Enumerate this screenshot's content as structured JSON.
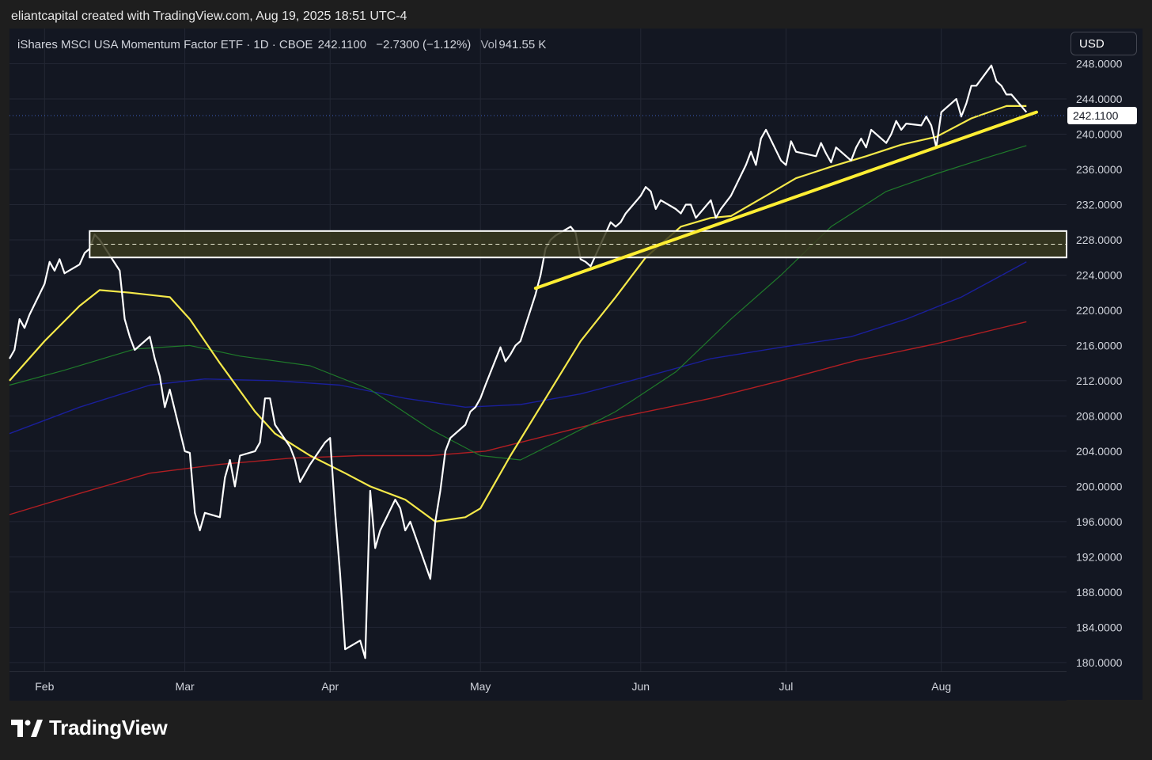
{
  "header": {
    "text": "eliantcapital created with TradingView.com, Aug 19, 2025 18:51 UTC-4"
  },
  "legend": {
    "symbol": "iShares MSCI USA Momentum Factor ETF · 1D · CBOE",
    "last": "242.1100",
    "change": "−2.7300 (−1.12%)",
    "vol_label": "Vol",
    "vol_value": "941.55 K"
  },
  "currency_button": "USD",
  "brand": {
    "name": "TradingView",
    "icon": "tradingview-logo-icon"
  },
  "colors": {
    "background": "#131722",
    "price": "#ffffff",
    "ma_short": "#f5e94a",
    "ma_mid": "#1f7a2a",
    "ma_long": "#1a1f9a",
    "ma_longest": "#b01e22",
    "trendline": "#ffee33",
    "zone_fill": "#3a3a1e"
  },
  "chart_data": {
    "type": "line",
    "symbol": "iShares MSCI USA Momentum Factor ETF",
    "interval": "1D",
    "exchange": "CBOE",
    "last_price": 242.11,
    "y_ticks": [
      "248.0000",
      "244.0000",
      "240.0000",
      "236.0000",
      "232.0000",
      "228.0000",
      "224.0000",
      "220.0000",
      "216.0000",
      "212.0000",
      "208.0000",
      "204.0000",
      "200.0000",
      "196.0000",
      "192.0000",
      "188.0000",
      "184.0000",
      "180.0000"
    ],
    "x_ticks": [
      {
        "label": "Feb",
        "date": "2025-02-03"
      },
      {
        "label": "Mar",
        "date": "2025-03-03"
      },
      {
        "label": "Apr",
        "date": "2025-04-01"
      },
      {
        "label": "May",
        "date": "2025-05-01"
      },
      {
        "label": "Jun",
        "date": "2025-06-02"
      },
      {
        "label": "Jul",
        "date": "2025-07-01"
      },
      {
        "label": "Aug",
        "date": "2025-08-01"
      }
    ],
    "ylim": [
      179,
      252
    ],
    "xlim": [
      "2025-01-27",
      "2025-08-26"
    ],
    "grid": true,
    "series": [
      {
        "role": "price",
        "color": "#ffffff",
        "width": 2.2,
        "values": [
          [
            "2025-01-27",
            214.5
          ],
          [
            "2025-01-28",
            215.5
          ],
          [
            "2025-01-29",
            219.0
          ],
          [
            "2025-01-30",
            218.0
          ],
          [
            "2025-01-31",
            219.5
          ],
          [
            "2025-02-03",
            223.0
          ],
          [
            "2025-02-04",
            225.5
          ],
          [
            "2025-02-05",
            224.5
          ],
          [
            "2025-02-06",
            225.8
          ],
          [
            "2025-02-07",
            224.2
          ],
          [
            "2025-02-10",
            225.2
          ],
          [
            "2025-02-11",
            226.5
          ],
          [
            "2025-02-12",
            227.0
          ],
          [
            "2025-02-13",
            228.6
          ],
          [
            "2025-02-14",
            228.0
          ],
          [
            "2025-02-18",
            224.5
          ],
          [
            "2025-02-19",
            219.0
          ],
          [
            "2025-02-20",
            217.0
          ],
          [
            "2025-02-21",
            215.5
          ],
          [
            "2025-02-24",
            217.0
          ],
          [
            "2025-02-25",
            214.5
          ],
          [
            "2025-02-26",
            212.5
          ],
          [
            "2025-02-27",
            209.0
          ],
          [
            "2025-02-28",
            211.0
          ],
          [
            "2025-03-03",
            204.0
          ],
          [
            "2025-03-04",
            203.8
          ],
          [
            "2025-03-05",
            197.0
          ],
          [
            "2025-03-06",
            195.0
          ],
          [
            "2025-03-07",
            197.0
          ],
          [
            "2025-03-10",
            196.5
          ],
          [
            "2025-03-11",
            201.0
          ],
          [
            "2025-03-12",
            203.0
          ],
          [
            "2025-03-13",
            200.0
          ],
          [
            "2025-03-14",
            203.5
          ],
          [
            "2025-03-17",
            204.0
          ],
          [
            "2025-03-18",
            205.0
          ],
          [
            "2025-03-19",
            210.0
          ],
          [
            "2025-03-20",
            210.0
          ],
          [
            "2025-03-21",
            207.0
          ],
          [
            "2025-03-24",
            204.5
          ],
          [
            "2025-03-25",
            203.0
          ],
          [
            "2025-03-26",
            200.5
          ],
          [
            "2025-03-27",
            201.5
          ],
          [
            "2025-03-28",
            202.5
          ],
          [
            "2025-03-31",
            205.0
          ],
          [
            "2025-04-01",
            205.5
          ],
          [
            "2025-04-02",
            197.0
          ],
          [
            "2025-04-03",
            190.0
          ],
          [
            "2025-04-04",
            181.5
          ],
          [
            "2025-04-07",
            182.5
          ],
          [
            "2025-04-08",
            180.5
          ],
          [
            "2025-04-09",
            199.5
          ],
          [
            "2025-04-10",
            193.0
          ],
          [
            "2025-04-11",
            195.0
          ],
          [
            "2025-04-14",
            198.5
          ],
          [
            "2025-04-15",
            197.5
          ],
          [
            "2025-04-16",
            195.0
          ],
          [
            "2025-04-17",
            196.0
          ],
          [
            "2025-04-21",
            189.5
          ],
          [
            "2025-04-22",
            196.0
          ],
          [
            "2025-04-23",
            199.5
          ],
          [
            "2025-04-24",
            204.0
          ],
          [
            "2025-04-25",
            205.5
          ],
          [
            "2025-04-28",
            207.0
          ],
          [
            "2025-04-29",
            208.5
          ],
          [
            "2025-04-30",
            209.0
          ],
          [
            "2025-05-01",
            210.0
          ],
          [
            "2025-05-02",
            211.5
          ],
          [
            "2025-05-05",
            215.8
          ],
          [
            "2025-05-06",
            214.2
          ],
          [
            "2025-05-07",
            215.0
          ],
          [
            "2025-05-08",
            216.0
          ],
          [
            "2025-05-09",
            216.5
          ],
          [
            "2025-05-12",
            221.8
          ],
          [
            "2025-05-13",
            224.0
          ],
          [
            "2025-05-14",
            227.0
          ],
          [
            "2025-05-15",
            228.0
          ],
          [
            "2025-05-16",
            228.5
          ],
          [
            "2025-05-19",
            229.5
          ],
          [
            "2025-05-20",
            228.8
          ],
          [
            "2025-05-21",
            225.8
          ],
          [
            "2025-05-22",
            225.5
          ],
          [
            "2025-05-23",
            225.0
          ],
          [
            "2025-05-27",
            230.0
          ],
          [
            "2025-05-28",
            229.5
          ],
          [
            "2025-05-29",
            230.0
          ],
          [
            "2025-05-30",
            231.0
          ],
          [
            "2025-06-02",
            233.0
          ],
          [
            "2025-06-03",
            234.0
          ],
          [
            "2025-06-04",
            233.5
          ],
          [
            "2025-06-05",
            231.5
          ],
          [
            "2025-06-06",
            232.5
          ],
          [
            "2025-06-09",
            231.5
          ],
          [
            "2025-06-10",
            231.0
          ],
          [
            "2025-06-11",
            232.0
          ],
          [
            "2025-06-12",
            232.0
          ],
          [
            "2025-06-13",
            230.5
          ],
          [
            "2025-06-16",
            232.5
          ],
          [
            "2025-06-17",
            230.5
          ],
          [
            "2025-06-18",
            231.5
          ],
          [
            "2025-06-20",
            233.0
          ],
          [
            "2025-06-23",
            236.5
          ],
          [
            "2025-06-24",
            238.0
          ],
          [
            "2025-06-25",
            236.5
          ],
          [
            "2025-06-26",
            239.5
          ],
          [
            "2025-06-27",
            240.5
          ],
          [
            "2025-06-30",
            237.0
          ],
          [
            "2025-07-01",
            236.5
          ],
          [
            "2025-07-02",
            239.2
          ],
          [
            "2025-07-03",
            238.0
          ],
          [
            "2025-07-07",
            237.5
          ],
          [
            "2025-07-08",
            239.0
          ],
          [
            "2025-07-09",
            237.8
          ],
          [
            "2025-07-10",
            236.8
          ],
          [
            "2025-07-11",
            238.5
          ],
          [
            "2025-07-14",
            237.0
          ],
          [
            "2025-07-15",
            238.5
          ],
          [
            "2025-07-16",
            239.5
          ],
          [
            "2025-07-17",
            238.5
          ],
          [
            "2025-07-18",
            240.5
          ],
          [
            "2025-07-21",
            239.0
          ],
          [
            "2025-07-22",
            240.0
          ],
          [
            "2025-07-23",
            241.5
          ],
          [
            "2025-07-24",
            240.5
          ],
          [
            "2025-07-25",
            241.2
          ],
          [
            "2025-07-28",
            241.0
          ],
          [
            "2025-07-29",
            242.0
          ],
          [
            "2025-07-30",
            241.0
          ],
          [
            "2025-07-31",
            238.5
          ],
          [
            "2025-08-01",
            242.5
          ],
          [
            "2025-08-04",
            244.0
          ],
          [
            "2025-08-05",
            242.0
          ],
          [
            "2025-08-06",
            243.5
          ],
          [
            "2025-08-07",
            245.5
          ],
          [
            "2025-08-08",
            245.5
          ],
          [
            "2025-08-11",
            247.8
          ],
          [
            "2025-08-12",
            246.0
          ],
          [
            "2025-08-13",
            245.5
          ],
          [
            "2025-08-14",
            244.5
          ],
          [
            "2025-08-15",
            244.5
          ],
          [
            "2025-08-18",
            242.5
          ]
        ]
      },
      {
        "role": "moving-average",
        "color": "#f5e94a",
        "width": 2.2,
        "values": [
          [
            "2025-01-27",
            212.0
          ],
          [
            "2025-02-03",
            216.5
          ],
          [
            "2025-02-10",
            220.5
          ],
          [
            "2025-02-14",
            222.3
          ],
          [
            "2025-02-20",
            222.0
          ],
          [
            "2025-02-28",
            221.5
          ],
          [
            "2025-03-04",
            219.0
          ],
          [
            "2025-03-10",
            214.0
          ],
          [
            "2025-03-17",
            208.5
          ],
          [
            "2025-03-21",
            206.0
          ],
          [
            "2025-03-28",
            203.5
          ],
          [
            "2025-04-04",
            201.5
          ],
          [
            "2025-04-09",
            200.0
          ],
          [
            "2025-04-16",
            198.5
          ],
          [
            "2025-04-22",
            196.0
          ],
          [
            "2025-04-28",
            196.5
          ],
          [
            "2025-05-01",
            197.5
          ],
          [
            "2025-05-07",
            203.5
          ],
          [
            "2025-05-14",
            210.0
          ],
          [
            "2025-05-21",
            216.5
          ],
          [
            "2025-05-28",
            221.5
          ],
          [
            "2025-06-03",
            226.0
          ],
          [
            "2025-06-10",
            229.5
          ],
          [
            "2025-06-16",
            230.5
          ],
          [
            "2025-06-20",
            230.7
          ],
          [
            "2025-06-27",
            233.0
          ],
          [
            "2025-07-03",
            235.0
          ],
          [
            "2025-07-10",
            236.3
          ],
          [
            "2025-07-17",
            237.5
          ],
          [
            "2025-07-24",
            238.8
          ],
          [
            "2025-07-31",
            239.7
          ],
          [
            "2025-08-07",
            241.8
          ],
          [
            "2025-08-14",
            243.2
          ],
          [
            "2025-08-18",
            243.2
          ]
        ]
      },
      {
        "role": "moving-average",
        "color": "#1f7a2a",
        "width": 1.2,
        "values": [
          [
            "2025-01-27",
            211.5
          ],
          [
            "2025-02-07",
            213.2
          ],
          [
            "2025-02-21",
            215.6
          ],
          [
            "2025-03-04",
            216.0
          ],
          [
            "2025-03-14",
            214.8
          ],
          [
            "2025-03-28",
            213.7
          ],
          [
            "2025-04-09",
            211.0
          ],
          [
            "2025-04-21",
            206.5
          ],
          [
            "2025-05-01",
            203.5
          ],
          [
            "2025-05-09",
            203.0
          ],
          [
            "2025-05-16",
            205.0
          ],
          [
            "2025-05-28",
            208.5
          ],
          [
            "2025-06-09",
            213.0
          ],
          [
            "2025-06-20",
            219.0
          ],
          [
            "2025-06-30",
            224.0
          ],
          [
            "2025-07-10",
            229.5
          ],
          [
            "2025-07-21",
            233.5
          ],
          [
            "2025-07-31",
            235.5
          ],
          [
            "2025-08-11",
            237.5
          ],
          [
            "2025-08-18",
            238.7
          ]
        ]
      },
      {
        "role": "moving-average",
        "color": "#1a1f9a",
        "width": 1.4,
        "values": [
          [
            "2025-01-27",
            206.0
          ],
          [
            "2025-02-10",
            209.0
          ],
          [
            "2025-02-24",
            211.5
          ],
          [
            "2025-03-07",
            212.2
          ],
          [
            "2025-03-21",
            212.0
          ],
          [
            "2025-04-03",
            211.5
          ],
          [
            "2025-04-16",
            210.0
          ],
          [
            "2025-04-28",
            209.0
          ],
          [
            "2025-05-09",
            209.3
          ],
          [
            "2025-05-21",
            210.5
          ],
          [
            "2025-06-02",
            212.3
          ],
          [
            "2025-06-16",
            214.5
          ],
          [
            "2025-06-30",
            215.8
          ],
          [
            "2025-07-14",
            217.0
          ],
          [
            "2025-07-25",
            219.0
          ],
          [
            "2025-08-05",
            221.5
          ],
          [
            "2025-08-18",
            225.5
          ]
        ]
      },
      {
        "role": "moving-average",
        "color": "#b01e22",
        "width": 1.4,
        "values": [
          [
            "2025-01-27",
            196.8
          ],
          [
            "2025-02-10",
            199.2
          ],
          [
            "2025-02-24",
            201.5
          ],
          [
            "2025-03-10",
            202.5
          ],
          [
            "2025-03-24",
            203.2
          ],
          [
            "2025-04-07",
            203.5
          ],
          [
            "2025-04-21",
            203.5
          ],
          [
            "2025-05-02",
            204.0
          ],
          [
            "2025-05-16",
            206.0
          ],
          [
            "2025-05-30",
            208.0
          ],
          [
            "2025-06-16",
            210.0
          ],
          [
            "2025-06-30",
            212.0
          ],
          [
            "2025-07-15",
            214.3
          ],
          [
            "2025-07-31",
            216.2
          ],
          [
            "2025-08-18",
            218.7
          ]
        ]
      }
    ],
    "annotations": [
      {
        "type": "trendline",
        "color": "#ffee33",
        "from": [
          "2025-05-12",
          222.5
        ],
        "to": [
          "2025-08-20",
          242.5
        ]
      },
      {
        "type": "horizontal-zone",
        "from_date": "2025-02-12",
        "top": 229.0,
        "bottom": 226.0,
        "mid": 227.5
      },
      {
        "type": "price-line",
        "value": 242.11,
        "label": "242.1100"
      }
    ]
  }
}
